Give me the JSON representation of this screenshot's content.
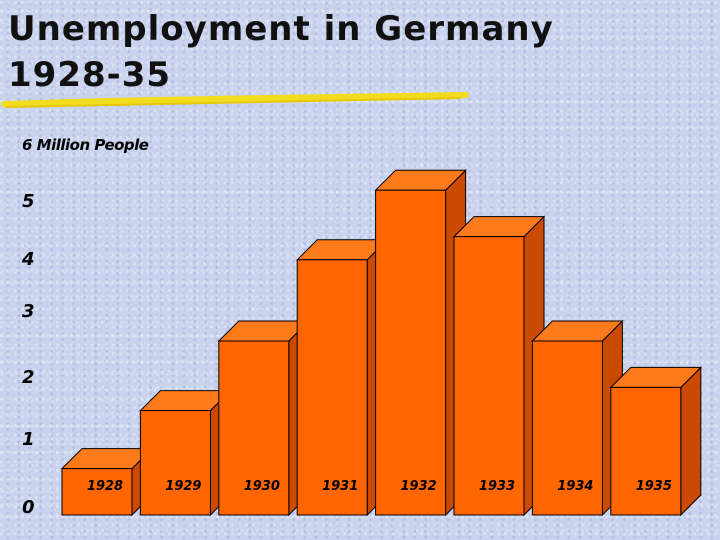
{
  "title": {
    "line1": "Unemployment in Germany",
    "line2": "1928-35"
  },
  "chart_data": {
    "type": "bar",
    "title": "Unemployment in Germany 1928-35",
    "ylabel": "6 Million People",
    "yticks": [
      "0",
      "1",
      "2",
      "3",
      "4",
      "5"
    ],
    "ylim": [
      0,
      6
    ],
    "categories": [
      "1928",
      "1929",
      "1930",
      "1931",
      "1932",
      "1933",
      "1934",
      "1935"
    ],
    "values": [
      0.8,
      1.8,
      3.0,
      4.4,
      5.6,
      4.8,
      3.0,
      2.2
    ],
    "grid": false,
    "style": "3d-bars",
    "colors": {
      "bar_front": "#ff6600",
      "bar_top": "#ff7a1a",
      "bar_side": "#c94a00",
      "outline": "#000000"
    }
  }
}
